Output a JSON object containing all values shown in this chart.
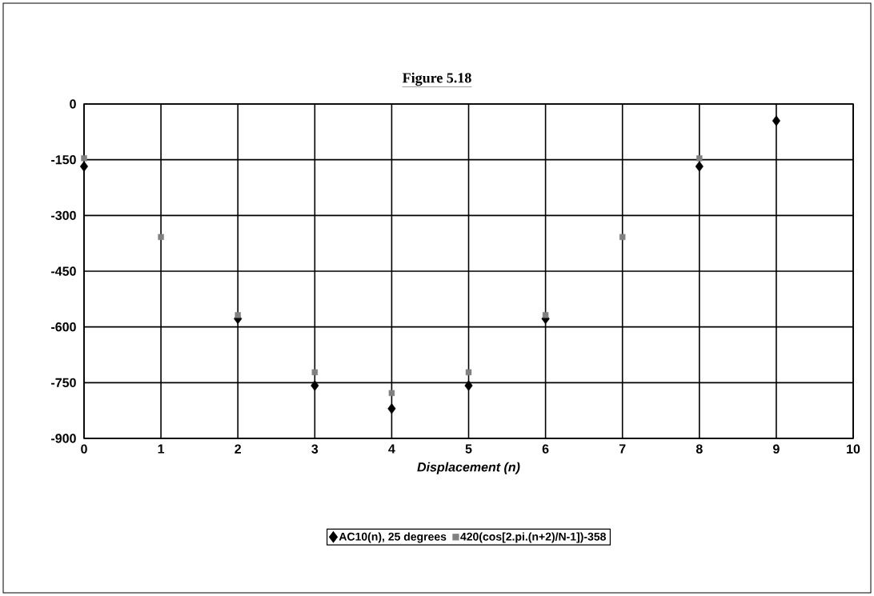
{
  "chart_data": {
    "type": "scatter",
    "title": "Figure 5.18",
    "xlabel": "Displacement (n)",
    "xlim": [
      0,
      10
    ],
    "xticks": [
      0,
      1,
      2,
      3,
      4,
      5,
      6,
      7,
      8,
      9,
      10
    ],
    "ylim": [
      -900,
      0
    ],
    "yticks": [
      -900,
      -750,
      -600,
      -450,
      -300,
      -150,
      0
    ],
    "grid": true,
    "legend": "bottom",
    "series": [
      {
        "name": "AC10(n), 25 degrees",
        "color": "#000000",
        "marker": "diamond",
        "x": [
          0,
          1,
          2,
          3,
          4,
          5,
          6,
          7,
          8,
          9
        ],
        "values": [
          -168,
          null,
          -578,
          -758,
          -820,
          -758,
          -578,
          null,
          -168,
          -45
        ]
      },
      {
        "name": "420(cos[2.pi.(n+2)/N-1])-358",
        "color": "#808080",
        "marker": "square",
        "x": [
          0,
          1,
          2,
          3,
          4,
          5,
          6,
          7,
          8
        ],
        "values": [
          -146,
          -358,
          -568,
          -722,
          -778,
          -722,
          -568,
          -358,
          -146
        ]
      }
    ]
  }
}
